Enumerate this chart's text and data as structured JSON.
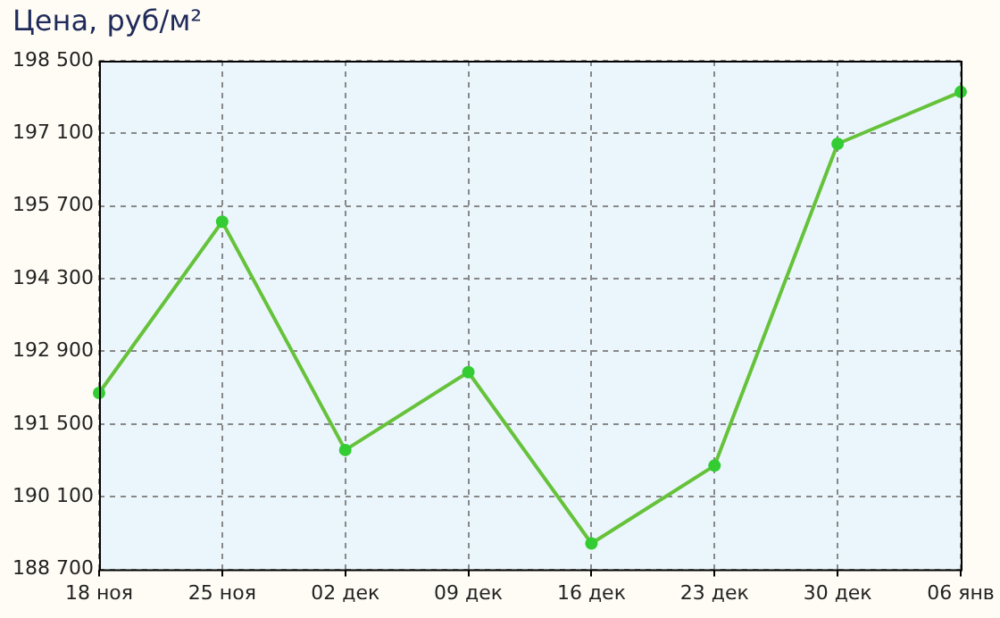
{
  "chart_data": {
    "type": "line",
    "title": "Цена, руб/м²",
    "categories": [
      "18 ноя",
      "25 ноя",
      "02 дек",
      "09 дек",
      "16 дек",
      "23 дек",
      "30 дек",
      "06 янв"
    ],
    "series": [
      {
        "color": "#66c23a",
        "values": [
          192100,
          195400,
          191000,
          192500,
          189200,
          190700,
          196900,
          197900
        ]
      }
    ],
    "ylim": [
      188700,
      198500
    ],
    "yticks": [
      {
        "value": 188700,
        "label": "188 700"
      },
      {
        "value": 190100,
        "label": "190 100"
      },
      {
        "value": 191500,
        "label": "191 500"
      },
      {
        "value": 192900,
        "label": "192 900"
      },
      {
        "value": 194300,
        "label": "194 300"
      },
      {
        "value": 195700,
        "label": "195 700"
      },
      {
        "value": 197100,
        "label": "197 100"
      },
      {
        "value": 198500,
        "label": "198 500"
      }
    ],
    "grid": true,
    "legend": false,
    "marker": "circle",
    "line_style": "solid"
  }
}
